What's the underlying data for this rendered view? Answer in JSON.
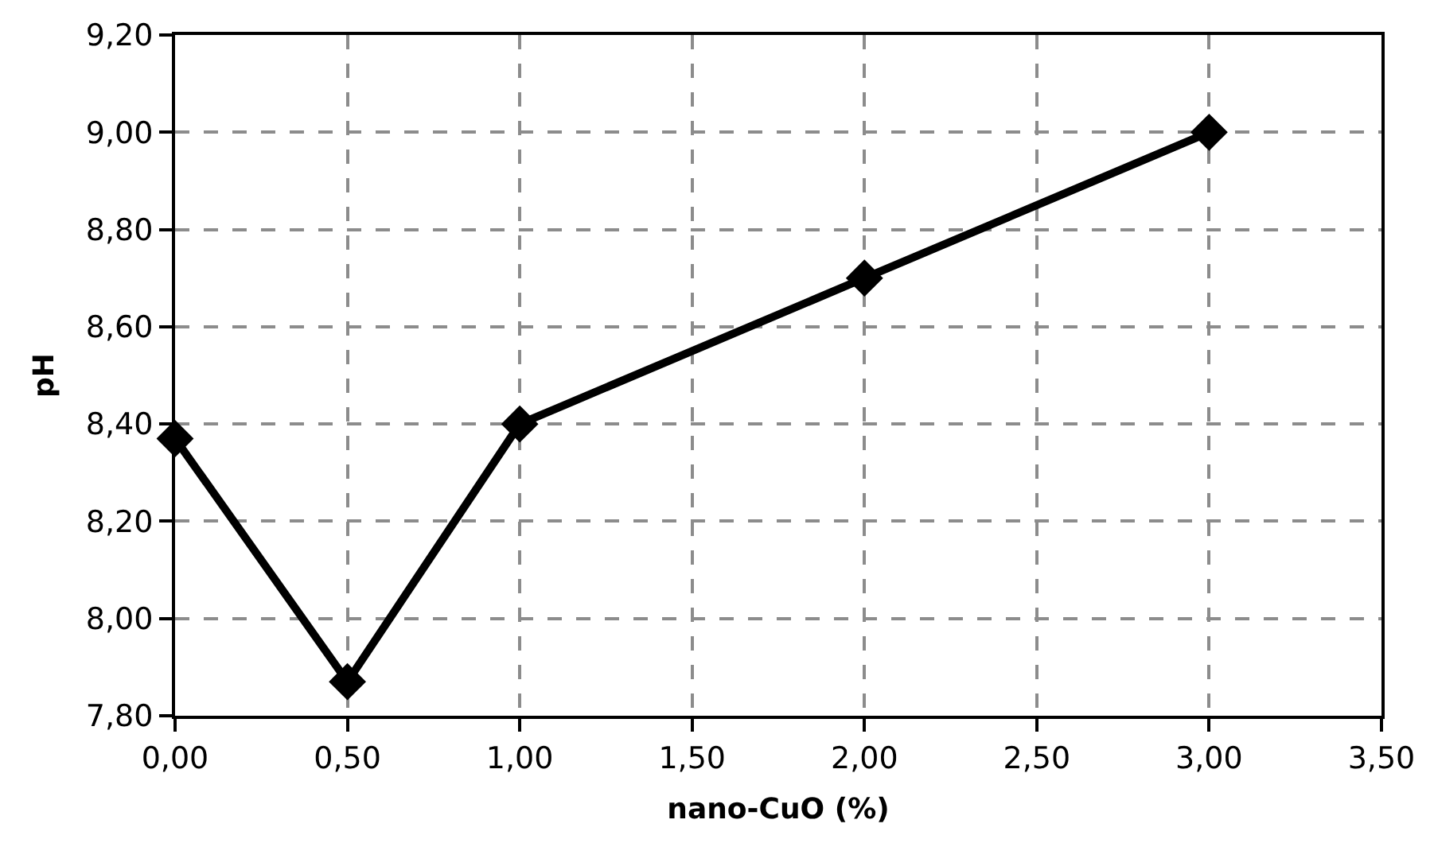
{
  "chart_data": {
    "type": "line",
    "xlabel": "nano-CuO (%)",
    "ylabel": "pH",
    "x": [
      0,
      0.5,
      1,
      2,
      3
    ],
    "series": [
      {
        "color": "#000000",
        "values": [
          8.37,
          7.87,
          8.4,
          8.7,
          9.0
        ]
      }
    ],
    "xlim": [
      0,
      3.5
    ],
    "xticks": [
      {
        "value": 0,
        "label": "0,00"
      },
      {
        "value": 0.5,
        "label": "0,50"
      },
      {
        "value": 1,
        "label": "1,00"
      },
      {
        "value": 1.5,
        "label": "1,50"
      },
      {
        "value": 2,
        "label": "2,00"
      },
      {
        "value": 2.5,
        "label": "2,50"
      },
      {
        "value": 3,
        "label": "3,00"
      },
      {
        "value": 3.5,
        "label": "3,50"
      }
    ],
    "ylim": [
      7.8,
      9.2
    ],
    "yticks": [
      {
        "value": 7.8,
        "label": "7,80"
      },
      {
        "value": 8.0,
        "label": "8,00"
      },
      {
        "value": 8.2,
        "label": "8,20"
      },
      {
        "value": 8.4,
        "label": "8,40"
      },
      {
        "value": 8.6,
        "label": "8,60"
      },
      {
        "value": 8.8,
        "label": "8,80"
      },
      {
        "value": 9.0,
        "label": "9,00"
      },
      {
        "value": 9.2,
        "label": "9,20"
      }
    ],
    "grid": true,
    "marker": "diamond",
    "line_style": "solid"
  }
}
